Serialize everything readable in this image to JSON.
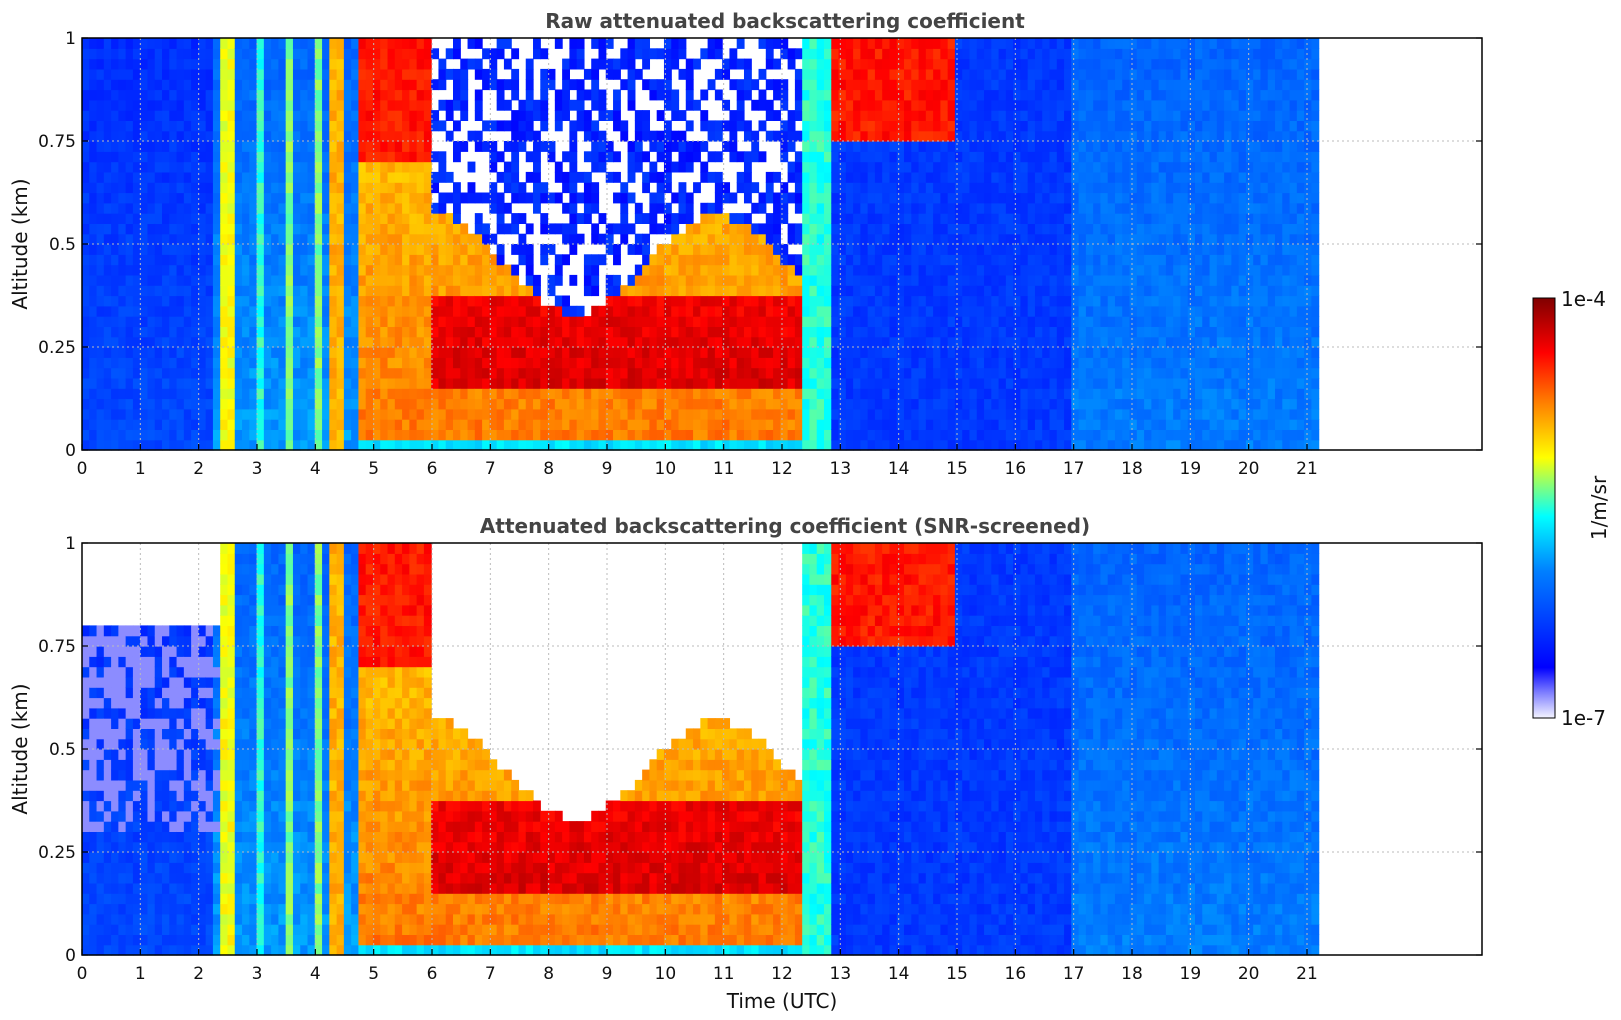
{
  "chart_data": [
    {
      "type": "heatmap",
      "title": "Raw attenuated backscattering coefficient",
      "xlabel": "",
      "ylabel": "Altitude (km)",
      "xlim": [
        0,
        24
      ],
      "ylim": [
        0,
        1
      ],
      "x_ticks": [
        "0",
        "1",
        "2",
        "3",
        "4",
        "5",
        "6",
        "7",
        "8",
        "9",
        "10",
        "11",
        "12",
        "13",
        "14",
        "15",
        "16",
        "17",
        "18",
        "19",
        "20",
        "21"
      ],
      "y_ticks": [
        "0",
        "0.25",
        "0.5",
        "0.75",
        "1"
      ],
      "grid": true,
      "data_end_time": 21.2,
      "screened": false
    },
    {
      "type": "heatmap",
      "title": "Attenuated backscattering coefficient (SNR-screened)",
      "xlabel": "Time (UTC)",
      "ylabel": "Altitude (km)",
      "xlim": [
        0,
        24
      ],
      "ylim": [
        0,
        1
      ],
      "x_ticks": [
        "0",
        "1",
        "2",
        "3",
        "4",
        "5",
        "6",
        "7",
        "8",
        "9",
        "10",
        "11",
        "12",
        "13",
        "14",
        "15",
        "16",
        "17",
        "18",
        "19",
        "20",
        "21"
      ],
      "y_ticks": [
        "0",
        "0.25",
        "0.5",
        "0.75",
        "1"
      ],
      "grid": true,
      "data_end_time": 21.2,
      "screened": true
    }
  ],
  "colorbar": {
    "label": "1/m/sr",
    "max_label": "1e-4",
    "min_label": "1e-7",
    "scale": "log",
    "colormap": [
      "#ffffff",
      "#0000ff",
      "#00ffff",
      "#ffff00",
      "#ff0000",
      "#800000"
    ]
  }
}
